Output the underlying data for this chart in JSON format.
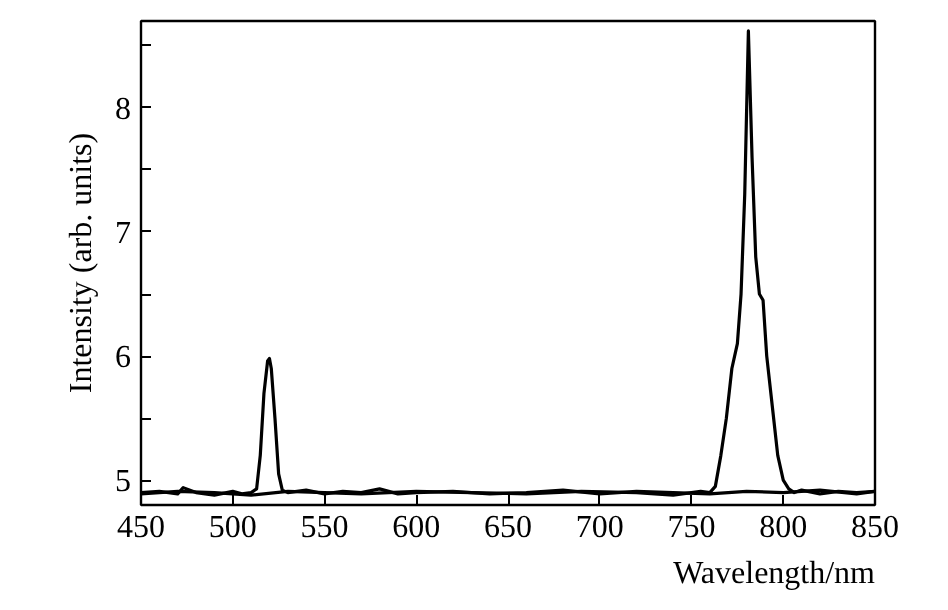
{
  "chart_data": {
    "type": "line",
    "xlabel": "Wavelength/nm",
    "ylabel": "Intensity (arb. units)",
    "xlim": [
      450,
      850
    ],
    "ylim": [
      4.8,
      8.7
    ],
    "xticks": [
      450,
      500,
      550,
      600,
      650,
      700,
      750,
      800,
      850
    ],
    "yticks": [
      5,
      {
        "value": 5.5,
        "label": null
      },
      6,
      {
        "value": 6.5,
        "label": null
      },
      7,
      {
        "value": 7.5,
        "label": null
      },
      8,
      {
        "value": 8.5,
        "label": null
      }
    ],
    "grid": false,
    "line_style": "solid",
    "marker": "none",
    "series": [
      {
        "color": "#000000",
        "x": [
          450,
          460,
          470,
          473,
          480,
          490,
          500,
          505,
          510,
          513,
          515,
          517,
          519,
          520,
          521,
          523,
          525,
          527,
          530,
          540,
          550,
          560,
          570,
          580,
          590,
          600,
          620,
          640,
          660,
          680,
          700,
          720,
          740,
          760,
          780,
          800,
          820,
          840,
          850
        ],
        "values": [
          4.9,
          4.91,
          4.89,
          4.94,
          4.9,
          4.88,
          4.91,
          4.89,
          4.9,
          4.93,
          5.2,
          5.7,
          5.96,
          5.98,
          5.9,
          5.5,
          5.05,
          4.92,
          4.9,
          4.92,
          4.89,
          4.91,
          4.9,
          4.93,
          4.89,
          4.9,
          4.91,
          4.89,
          4.9,
          4.92,
          4.89,
          4.91,
          4.9,
          4.89,
          4.91,
          4.9,
          4.92,
          4.89,
          4.91
        ]
      },
      {
        "color": "#000000",
        "x": [
          450,
          470,
          490,
          510,
          530,
          550,
          570,
          600,
          630,
          660,
          690,
          720,
          740,
          755,
          760,
          763,
          766,
          769,
          772,
          775,
          777,
          779,
          781,
          783,
          785,
          787,
          789,
          791,
          794,
          797,
          800,
          803,
          806,
          810,
          820,
          830,
          840,
          850
        ],
        "values": [
          4.89,
          4.91,
          4.9,
          4.88,
          4.91,
          4.9,
          4.89,
          4.91,
          4.9,
          4.89,
          4.91,
          4.9,
          4.88,
          4.91,
          4.9,
          4.95,
          5.2,
          5.5,
          5.9,
          6.1,
          6.5,
          7.3,
          8.62,
          7.6,
          6.8,
          6.5,
          6.45,
          6.0,
          5.6,
          5.2,
          5.0,
          4.93,
          4.9,
          4.92,
          4.89,
          4.91,
          4.9,
          4.91
        ]
      }
    ]
  }
}
